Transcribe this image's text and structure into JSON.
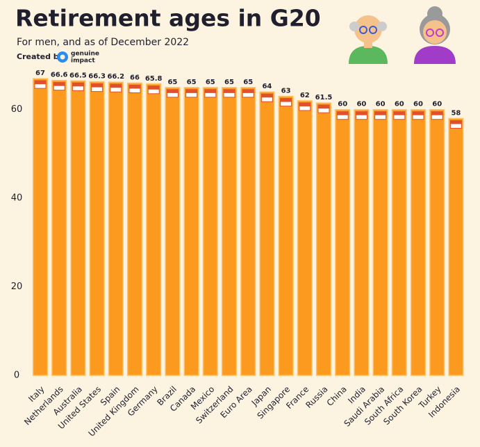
{
  "chart_data": {
    "type": "bar",
    "title": "Retirement ages in G20",
    "subtitle": "For men, and as of December 2022",
    "credit": "Created by",
    "brand": [
      "genuine",
      "impact"
    ],
    "categories": [
      "Italy",
      "Netherlands",
      "Australia",
      "United States",
      "Spain",
      "United Kingdom",
      "Germany",
      "Brazil",
      "Canada",
      "Mexico",
      "Switzerland",
      "Euro Area",
      "Japan",
      "Singapore",
      "France",
      "Russia",
      "China",
      "India",
      "Saudi Arabia",
      "South Africa",
      "South Korea",
      "Turkey",
      "Indonesia"
    ],
    "values": [
      67,
      66.6,
      66.5,
      66.3,
      66.2,
      66,
      65.8,
      65,
      65,
      65,
      65,
      65,
      64,
      63,
      62,
      61.5,
      60,
      60,
      60,
      60,
      60,
      60,
      58
    ],
    "color": "#fb9a1f",
    "ylim": [
      0,
      70
    ],
    "yticks": [
      0,
      20,
      40,
      60
    ],
    "grid": false
  }
}
